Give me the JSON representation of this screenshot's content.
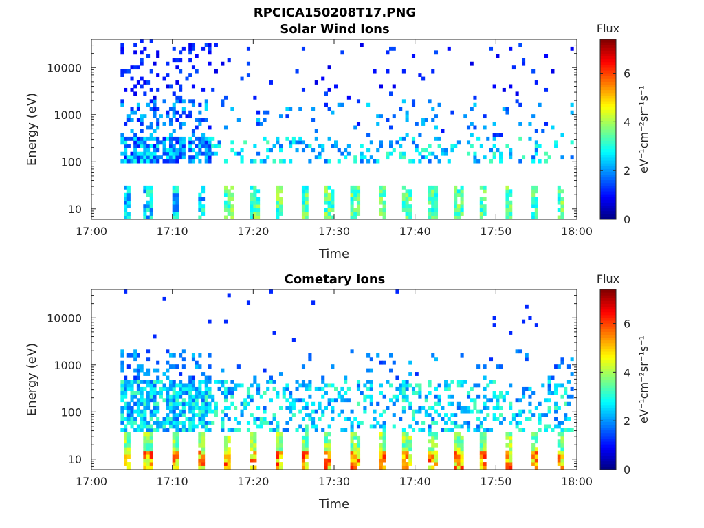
{
  "figure": {
    "title": "RPCICA150208T17.PNG",
    "colorbar_label": "Flux",
    "colorbar_unit": "eV⁻¹cm⁻²sr⁻¹s⁻¹",
    "colors": {
      "axes": "#262626",
      "background": "#ffffff"
    }
  },
  "chart_data": [
    {
      "type": "heatmap",
      "title": "Solar Wind Ions",
      "xlabel": "Time",
      "ylabel": "Energy (eV)",
      "xlim": [
        "17:00",
        "18:00"
      ],
      "xticks": [
        "17:00",
        "17:10",
        "17:20",
        "17:30",
        "17:40",
        "17:50",
        "18:00"
      ],
      "ylim": [
        6,
        40000
      ],
      "yscale": "log",
      "yticks": [
        10,
        100,
        1000,
        10000
      ],
      "color_range": [
        0,
        7.4
      ],
      "colorbar_ticks": [
        0,
        2,
        4,
        6
      ],
      "colorscale": "jet",
      "grid": false,
      "profile": "solar",
      "dense_bursts": [
        4.3,
        7.0,
        10.3,
        13.6
      ],
      "bursts": [
        4.3,
        7.0,
        10.3,
        13.6,
        17.0,
        20.2,
        23.3,
        26.3,
        29.4,
        32.6,
        35.9,
        39.0,
        42.2,
        45.4,
        48.5,
        51.7,
        54.9,
        58.0
      ]
    },
    {
      "type": "heatmap",
      "title": "Cometary Ions",
      "xlabel": "Time",
      "ylabel": "Energy (eV)",
      "xlim": [
        "17:00",
        "18:00"
      ],
      "xticks": [
        "17:00",
        "17:10",
        "17:20",
        "17:30",
        "17:40",
        "17:50",
        "18:00"
      ],
      "ylim": [
        6,
        40000
      ],
      "yscale": "log",
      "yticks": [
        10,
        100,
        1000,
        10000
      ],
      "color_range": [
        0,
        7.4
      ],
      "colorbar_ticks": [
        0,
        2,
        4,
        6
      ],
      "colorscale": "jet",
      "grid": false,
      "profile": "cometary",
      "dense_bursts": [
        4.3,
        7.0,
        10.3,
        13.6
      ],
      "bursts": [
        4.3,
        7.0,
        10.3,
        13.6,
        16.9,
        20.0,
        23.3,
        26.3,
        29.2,
        32.6,
        35.9,
        39.0,
        42.2,
        45.4,
        48.5,
        51.7,
        54.9,
        58.0
      ]
    }
  ]
}
